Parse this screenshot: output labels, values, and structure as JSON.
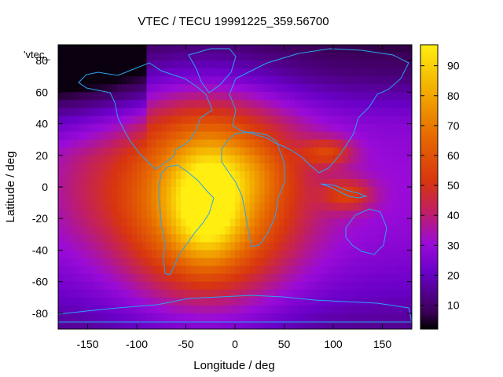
{
  "chart_data": {
    "type": "heatmap",
    "title": "VTEC / TECU 19991225_359.56700",
    "key_label": "'vtec_",
    "xlabel": "Longitude / deg",
    "ylabel": "Latitude / deg",
    "xlim": [
      -180,
      180
    ],
    "ylim": [
      -90,
      90
    ],
    "xticks": [
      -150,
      -100,
      -50,
      0,
      50,
      100,
      150
    ],
    "yticks": [
      -80,
      -60,
      -40,
      -20,
      0,
      20,
      40,
      60,
      80
    ],
    "colorbar": {
      "min": 2,
      "max": 97,
      "ticks": [
        10,
        20,
        30,
        40,
        50,
        60,
        70,
        80,
        90
      ],
      "palette": [
        "#000000",
        "#3c0058",
        "#6a00c8",
        "#9a0bd8",
        "#c2205e",
        "#d8350f",
        "#e66a00",
        "#f3ad00",
        "#ffee10"
      ],
      "palette_stops": [
        0,
        0.06,
        0.2,
        0.3,
        0.42,
        0.52,
        0.68,
        0.84,
        1
      ]
    },
    "field_blobs": [
      {
        "lon": -30,
        "lat": -8,
        "sigma_lon": 62,
        "sigma_lat": 45,
        "amplitude": 58
      },
      {
        "lon": -28,
        "lat": -12,
        "sigma_lon": 22,
        "sigma_lat": 22,
        "amplitude": 28
      },
      {
        "lon": 15,
        "lat": 10,
        "sigma_lon": 28,
        "sigma_lat": 14,
        "amplitude": 8
      },
      {
        "lon": 95,
        "lat": 22,
        "sigma_lon": 18,
        "sigma_lat": 6,
        "amplitude": 22
      },
      {
        "lon": 115,
        "lat": -5,
        "sigma_lon": 18,
        "sigma_lat": 7,
        "amplitude": 22
      },
      {
        "lon": -150,
        "lat": 0,
        "sigma_lon": 30,
        "sigma_lat": 25,
        "amplitude": 5
      }
    ],
    "field_background": {
      "equator_value": 30,
      "pole_value": 14,
      "north_dark_value": 6
    },
    "field_minimum": 3
  }
}
